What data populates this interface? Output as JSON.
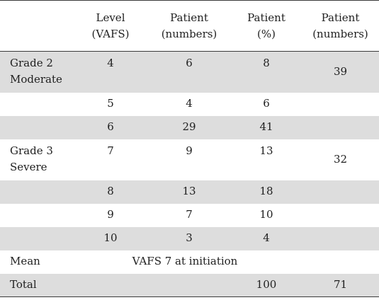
{
  "header": {
    "col0": "",
    "col1": [
      "Level",
      "(VAFS)"
    ],
    "col2": [
      "Patient",
      "(numbers)"
    ],
    "col3": [
      "Patient",
      "(%)"
    ],
    "col4": [
      "Patient",
      "(numbers)"
    ]
  },
  "rows": [
    {
      "label": [
        "Grade 2",
        "Moderate"
      ],
      "level": "4",
      "num": "6",
      "pct": "8",
      "group_total": "39"
    },
    {
      "label": [],
      "level": "5",
      "num": "4",
      "pct": "6"
    },
    {
      "label": [],
      "level": "6",
      "num": "29",
      "pct": "41"
    },
    {
      "label": [
        "Grade 3",
        "Severe"
      ],
      "level": "7",
      "num": "9",
      "pct": "13",
      "group_total": "32"
    },
    {
      "label": [],
      "level": "8",
      "num": "13",
      "pct": "18"
    },
    {
      "label": [],
      "level": "9",
      "num": "7",
      "pct": "10"
    },
    {
      "label": [],
      "level": "10",
      "num": "3",
      "pct": "4"
    }
  ],
  "mean": {
    "label": "Mean",
    "text": "VAFS 7 at initiation"
  },
  "total": {
    "label": "Total",
    "pct": "100",
    "num": "71"
  },
  "colors": {
    "shade": "#dddddd",
    "rule": "#3a3a3a"
  }
}
